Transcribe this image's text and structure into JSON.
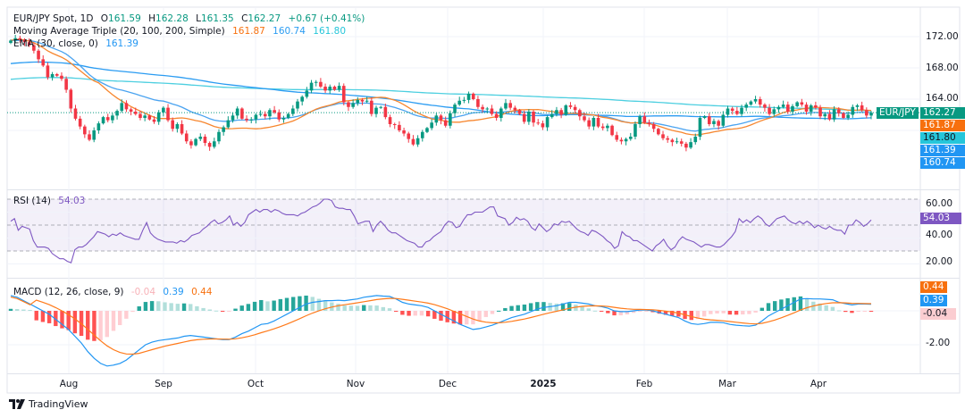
{
  "header": {
    "symbol": "EUR/JPY Spot, 1D",
    "open_label": "O",
    "open": "161.59",
    "high_label": "H",
    "high": "162.28",
    "low_label": "L",
    "low": "161.35",
    "close_label": "C",
    "close": "162.27",
    "change": "+0.67 (+0.41%)"
  },
  "indicators": {
    "ma_triple": {
      "label": "Moving Average Triple (20, 100, 200, Simple)",
      "v20": "161.87",
      "v100": "160.74",
      "v200": "161.80"
    },
    "ema": {
      "label": "EMA (30, close, 0)",
      "value": "161.39"
    },
    "rsi": {
      "label": "RSI (14)",
      "value": "54.03"
    },
    "macd": {
      "label": "MACD (12, 26, close, 9)",
      "hist": "-0.04",
      "macd": "0.39",
      "signal": "0.44"
    }
  },
  "price_badges": [
    {
      "label": "EUR/JPY",
      "value": "162.27",
      "color": "#089981"
    },
    {
      "value": "161.87",
      "color": "#f7700e"
    },
    {
      "value": "161.80",
      "color": "#26c6da"
    },
    {
      "value": "161.39",
      "color": "#2196f3"
    },
    {
      "value": "160.74",
      "color": "#2196f3"
    }
  ],
  "colors": {
    "up": "#089981",
    "down": "#f23645",
    "sma20": "#f7862e",
    "sma100": "#2b9cf2",
    "sma200": "#4dcfe0",
    "ema": "#4aa3f0",
    "rsi": "#7e57c2",
    "macd": "#2196f3",
    "signal": "#ff7a1a"
  },
  "footer": {
    "brand": "TradingView"
  },
  "chart_data": [
    {
      "type": "candlestick",
      "title": "EUR/JPY Spot, 1D",
      "yaxis_ticks": [
        "172.00",
        "168.00",
        "164.00"
      ],
      "ylim": [
        157.5,
        175.5
      ],
      "x_ticks": [
        "Aug",
        "Sep",
        "Oct",
        "Nov",
        "Dec",
        "2025",
        "Feb",
        "Mar",
        "Apr"
      ],
      "closes": [
        171.5,
        171.8,
        171.6,
        171.3,
        170.9,
        170.2,
        169.1,
        168.3,
        166.8,
        167.2,
        167.0,
        166.6,
        165.2,
        162.8,
        161.5,
        160.5,
        159.5,
        158.8,
        160.0,
        160.9,
        161.7,
        161.3,
        161.9,
        162.5,
        163.5,
        162.7,
        162.4,
        162.1,
        161.6,
        161.9,
        161.4,
        161.1,
        162.3,
        162.9,
        161.3,
        160.2,
        160.8,
        159.6,
        158.6,
        158.1,
        158.9,
        159.2,
        158.4,
        157.9,
        158.6,
        159.8,
        160.4,
        161.3,
        161.9,
        162.8,
        161.5,
        161.3,
        161.4,
        162.0,
        162.1,
        161.8,
        162.6,
        162.3,
        161.4,
        161.6,
        162.1,
        162.8,
        163.7,
        164.3,
        165.1,
        166.1,
        166.2,
        165.6,
        165.1,
        165.6,
        165.2,
        165.7,
        163.6,
        163.0,
        163.5,
        163.9,
        163.7,
        163.8,
        162.1,
        162.9,
        163.0,
        161.7,
        160.8,
        160.7,
        160.0,
        159.6,
        158.9,
        158.2,
        159.0,
        159.8,
        160.3,
        161.0,
        161.9,
        161.3,
        160.6,
        162.2,
        163.3,
        163.8,
        163.9,
        164.7,
        164.0,
        163.0,
        162.7,
        162.8,
        162.1,
        161.6,
        162.8,
        163.5,
        162.9,
        162.6,
        162.1,
        161.1,
        162.4,
        161.0,
        160.9,
        160.4,
        161.7,
        162.1,
        162.6,
        162.0,
        163.2,
        163.0,
        162.6,
        161.8,
        161.3,
        160.5,
        161.6,
        160.5,
        160.3,
        160.6,
        159.4,
        158.8,
        158.6,
        158.9,
        159.2,
        160.8,
        161.8,
        161.0,
        160.8,
        160.2,
        159.5,
        159.0,
        158.8,
        158.5,
        158.6,
        158.3,
        157.8,
        158.5,
        159.2,
        161.6,
        161.8,
        160.8,
        161.2,
        160.6,
        162.0,
        162.8,
        162.5,
        162.1,
        162.9,
        163.3,
        163.7,
        164.0,
        163.3,
        162.9,
        162.1,
        162.7,
        163.0,
        163.3,
        162.4,
        163.1,
        163.6,
        163.3,
        162.4,
        163.2,
        162.9,
        161.8,
        162.1,
        161.4,
        162.7,
        162.2,
        161.6,
        162.0,
        163.0,
        163.2,
        162.6,
        161.9,
        162.27
      ]
    },
    {
      "type": "line",
      "title": "RSI (14)",
      "yaxis_ticks": [
        "60.00",
        "40.00",
        "20.00"
      ],
      "ylim": [
        10,
        80
      ],
      "bands": [
        30,
        50,
        70
      ],
      "values": [
        53,
        55,
        46,
        49,
        48,
        47,
        38,
        33,
        33,
        33,
        32,
        28,
        26,
        24,
        24,
        22,
        21,
        31,
        33,
        33,
        35,
        38,
        41,
        45,
        44,
        43,
        41,
        43,
        42,
        44,
        42,
        41,
        40,
        39,
        39,
        46,
        52,
        44,
        41,
        39,
        38,
        37,
        37,
        37,
        36,
        38,
        37,
        39,
        42,
        43,
        44,
        47,
        49,
        52,
        54,
        51,
        52,
        54,
        57,
        50,
        52,
        49,
        52,
        58,
        60,
        62,
        60,
        62,
        62,
        60,
        62,
        61,
        59,
        58,
        58,
        58,
        57,
        59,
        60,
        62,
        64,
        65,
        67,
        70,
        70,
        69,
        64,
        63,
        63,
        62,
        62,
        57,
        51,
        52,
        53,
        53,
        45,
        50,
        53,
        50,
        46,
        44,
        44,
        42,
        40,
        38,
        37,
        36,
        33,
        33,
        37,
        38,
        41,
        43,
        45,
        50,
        53,
        52,
        48,
        49,
        54,
        58,
        58,
        60,
        60,
        60,
        62,
        64,
        64,
        57,
        56,
        55,
        50,
        52,
        56,
        54,
        55,
        53,
        48,
        46,
        51,
        48,
        45,
        47,
        51,
        50,
        53,
        52,
        53,
        50,
        47,
        45,
        44,
        42,
        46,
        45,
        43,
        41,
        38,
        36,
        32,
        34,
        45,
        42,
        41,
        38,
        38,
        36,
        34,
        32,
        30,
        34,
        36,
        39,
        34,
        31,
        33,
        38,
        41,
        39,
        38,
        37,
        35,
        33,
        35,
        35,
        34,
        33,
        33,
        35,
        38,
        41,
        45,
        55,
        52,
        54,
        52,
        55,
        57,
        55,
        51,
        49,
        52,
        55,
        56,
        57,
        54,
        52,
        51,
        53,
        51,
        53,
        51,
        48,
        50,
        48,
        47,
        49,
        47,
        46,
        46,
        43,
        50,
        50,
        54,
        52,
        49,
        51,
        54.03
      ]
    },
    {
      "type": "bar+line",
      "title": "MACD (12, 26, close, 9)",
      "yaxis_ticks": [
        "-2.00"
      ],
      "ylim": [
        -3.6,
        1.2
      ],
      "macd": [
        0.9,
        0.8,
        0.6,
        0.4,
        0.2,
        0.0,
        -0.2,
        -0.5,
        -0.8,
        -1.1,
        -1.5,
        -1.9,
        -2.4,
        -2.8,
        -3.1,
        -3.25,
        -3.2,
        -3.1,
        -2.9,
        -2.6,
        -2.3,
        -2.0,
        -1.85,
        -1.75,
        -1.7,
        -1.65,
        -1.6,
        -1.5,
        -1.45,
        -1.5,
        -1.55,
        -1.6,
        -1.65,
        -1.7,
        -1.7,
        -1.55,
        -1.35,
        -1.2,
        -1.0,
        -0.8,
        -0.75,
        -0.6,
        -0.4,
        -0.2,
        0.0,
        0.2,
        0.4,
        0.5,
        0.55,
        0.6,
        0.6,
        0.62,
        0.6,
        0.65,
        0.7,
        0.8,
        0.85,
        0.9,
        0.87,
        0.85,
        0.7,
        0.5,
        0.4,
        0.35,
        0.3,
        0.2,
        0.0,
        -0.2,
        -0.4,
        -0.6,
        -0.8,
        -0.95,
        -1.1,
        -1.05,
        -0.95,
        -0.85,
        -0.7,
        -0.55,
        -0.4,
        -0.3,
        -0.2,
        -0.05,
        0.1,
        0.2,
        0.25,
        0.3,
        0.4,
        0.5,
        0.5,
        0.45,
        0.4,
        0.3,
        0.25,
        0.15,
        0.0,
        -0.05,
        -0.05,
        0.0,
        0.05,
        0.05,
        0.0,
        -0.1,
        -0.2,
        -0.3,
        -0.4,
        -0.6,
        -0.75,
        -0.8,
        -0.75,
        -0.68,
        -0.68,
        -0.7,
        -0.8,
        -0.85,
        -0.88,
        -0.9,
        -0.85,
        -0.6,
        -0.3,
        -0.1,
        0.1,
        0.3,
        0.5,
        0.7,
        0.72,
        0.7,
        0.7,
        0.68,
        0.65,
        0.5,
        0.42,
        0.35,
        0.4,
        0.4,
        0.39
      ]
    }
  ]
}
